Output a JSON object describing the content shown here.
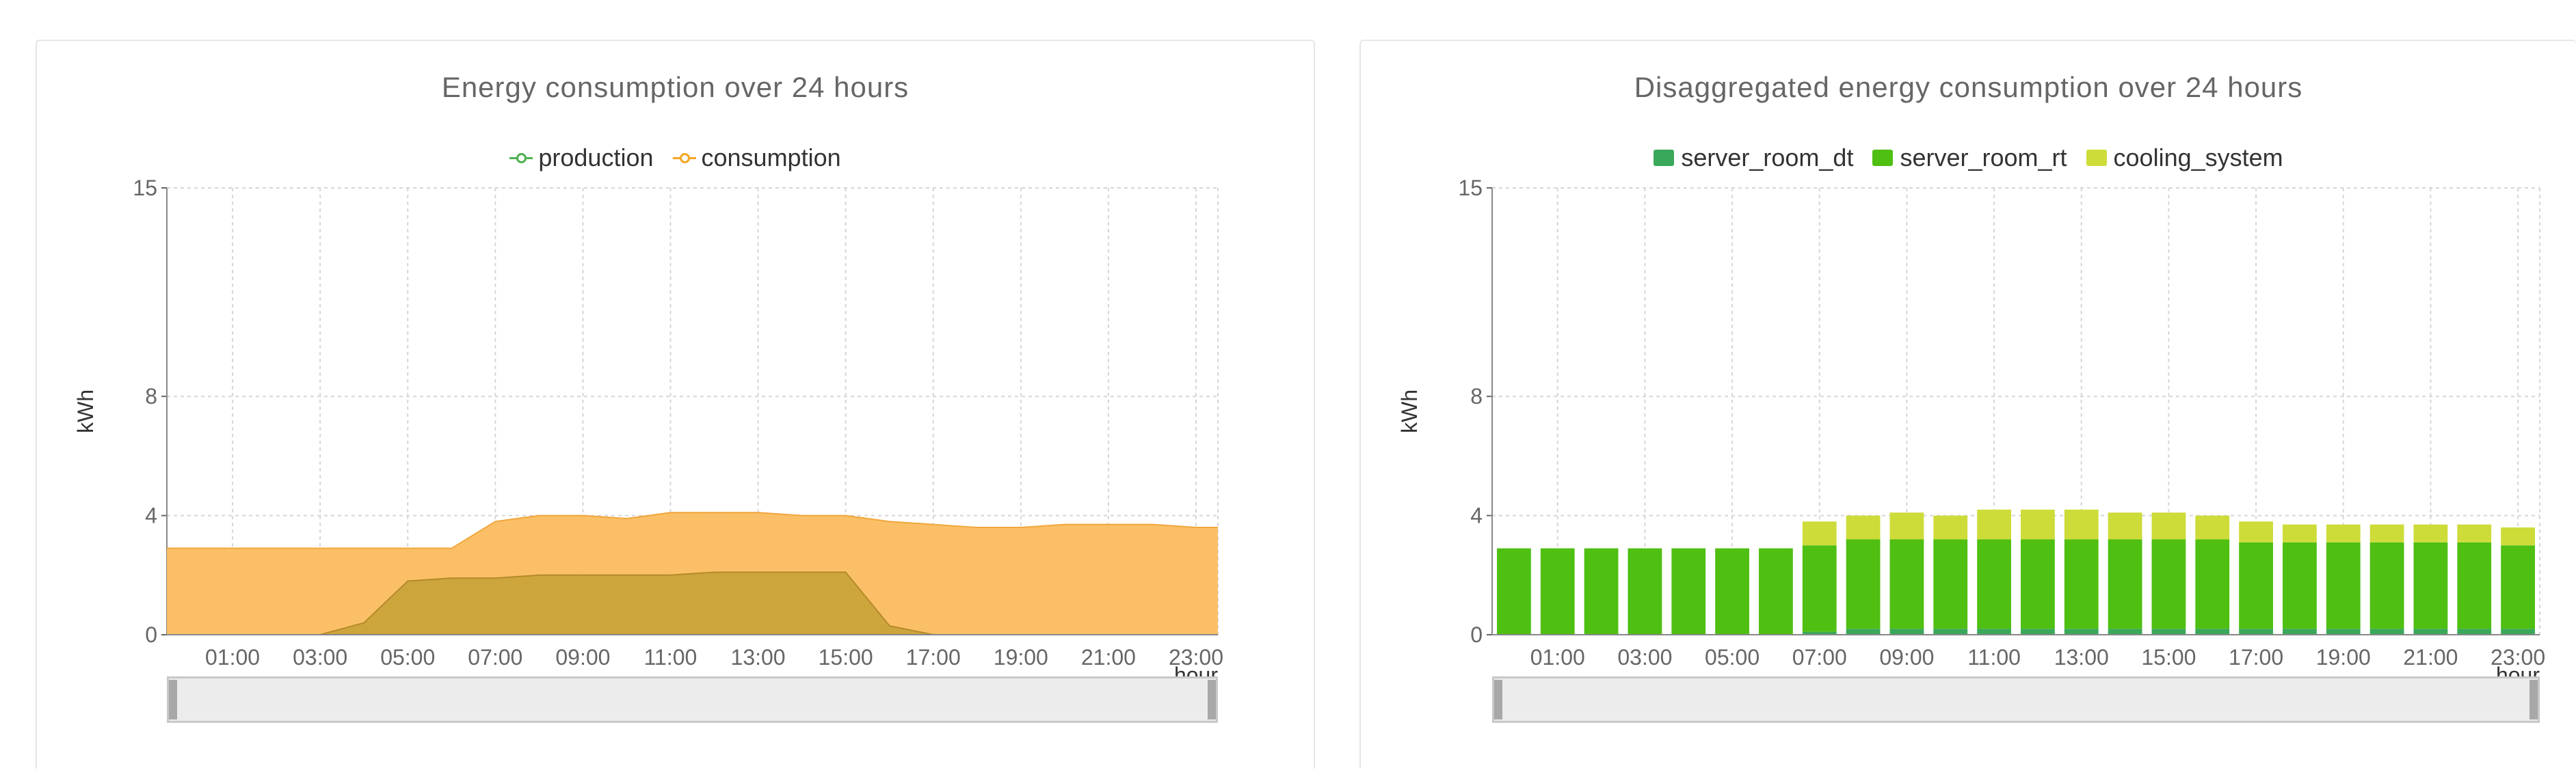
{
  "charts": [
    {
      "title": "Energy consumption over 24 hours",
      "ylabel": "kWh",
      "xlabel": "hour",
      "legend": [
        {
          "name": "production",
          "color": "#4caf50"
        },
        {
          "name": "consumption",
          "color": "#f5a623"
        }
      ]
    },
    {
      "title": "Disaggregated energy consumption over 24 hours",
      "ylabel": "kWh",
      "xlabel": "hour",
      "legend": [
        {
          "name": "server_room_dt",
          "color": "#3aa85a"
        },
        {
          "name": "server_room_rt",
          "color": "#4fbf12"
        },
        {
          "name": "cooling_system",
          "color": "#cddc39"
        }
      ]
    }
  ],
  "chart_data": [
    {
      "type": "area",
      "title": "Energy consumption over 24 hours",
      "xlabel": "hour",
      "ylabel": "kWh",
      "x": [
        "00:00",
        "01:00",
        "02:00",
        "03:00",
        "04:00",
        "05:00",
        "06:00",
        "07:00",
        "08:00",
        "09:00",
        "10:00",
        "11:00",
        "12:00",
        "13:00",
        "14:00",
        "15:00",
        "16:00",
        "17:00",
        "18:00",
        "19:00",
        "20:00",
        "21:00",
        "22:00",
        "23:00"
      ],
      "x_tick_labels": [
        "01:00",
        "03:00",
        "05:00",
        "07:00",
        "09:00",
        "11:00",
        "13:00",
        "15:00",
        "17:00",
        "19:00",
        "21:00",
        "23:00"
      ],
      "y_ticks": [
        0,
        4,
        8,
        15
      ],
      "ylim": [
        0,
        15
      ],
      "grid": true,
      "legend_position": "top",
      "series": [
        {
          "name": "consumption",
          "color": "#fbbd5f",
          "values": [
            2.9,
            2.9,
            2.9,
            2.9,
            2.9,
            2.9,
            2.9,
            3.8,
            4.0,
            4.0,
            3.9,
            4.1,
            4.1,
            4.1,
            4.0,
            4.0,
            3.8,
            3.7,
            3.6,
            3.6,
            3.7,
            3.7,
            3.7,
            3.6
          ]
        },
        {
          "name": "production",
          "color": "#c9a33a",
          "values": [
            0,
            0,
            0,
            0,
            0.4,
            1.8,
            1.9,
            1.9,
            2.0,
            2.0,
            2.0,
            2.0,
            2.1,
            2.1,
            2.1,
            2.1,
            0.3,
            0,
            0,
            0,
            0,
            0,
            0,
            0
          ]
        }
      ]
    },
    {
      "type": "bar",
      "stacked": true,
      "title": "Disaggregated energy consumption over 24 hours",
      "xlabel": "hour",
      "ylabel": "kWh",
      "categories": [
        "00:00",
        "01:00",
        "02:00",
        "03:00",
        "04:00",
        "05:00",
        "06:00",
        "07:00",
        "08:00",
        "09:00",
        "10:00",
        "11:00",
        "12:00",
        "13:00",
        "14:00",
        "15:00",
        "16:00",
        "17:00",
        "18:00",
        "19:00",
        "20:00",
        "21:00",
        "22:00",
        "23:00"
      ],
      "x_tick_labels": [
        "01:00",
        "03:00",
        "05:00",
        "07:00",
        "09:00",
        "11:00",
        "13:00",
        "15:00",
        "17:00",
        "19:00",
        "21:00",
        "23:00"
      ],
      "y_ticks": [
        0,
        4,
        8,
        15
      ],
      "ylim": [
        0,
        15
      ],
      "grid": true,
      "legend_position": "top",
      "series": [
        {
          "name": "server_room_dt",
          "color": "#3aa85a",
          "values": [
            0,
            0,
            0,
            0,
            0,
            0,
            0,
            0.1,
            0.2,
            0.2,
            0.2,
            0.2,
            0.2,
            0.2,
            0.2,
            0.2,
            0.2,
            0.2,
            0.2,
            0.2,
            0.2,
            0.2,
            0.2,
            0.2
          ]
        },
        {
          "name": "server_room_rt",
          "color": "#4fbf12",
          "values": [
            2.9,
            2.9,
            2.9,
            2.9,
            2.9,
            2.9,
            2.9,
            2.9,
            3.0,
            3.0,
            3.0,
            3.0,
            3.0,
            3.0,
            3.0,
            3.0,
            3.0,
            2.9,
            2.9,
            2.9,
            2.9,
            2.9,
            2.9,
            2.8
          ]
        },
        {
          "name": "cooling_system",
          "color": "#cddc39",
          "values": [
            0,
            0,
            0,
            0,
            0,
            0,
            0,
            0.8,
            0.8,
            0.9,
            0.8,
            1.0,
            1.0,
            1.0,
            0.9,
            0.9,
            0.8,
            0.7,
            0.6,
            0.6,
            0.6,
            0.6,
            0.6,
            0.6
          ]
        }
      ]
    }
  ]
}
